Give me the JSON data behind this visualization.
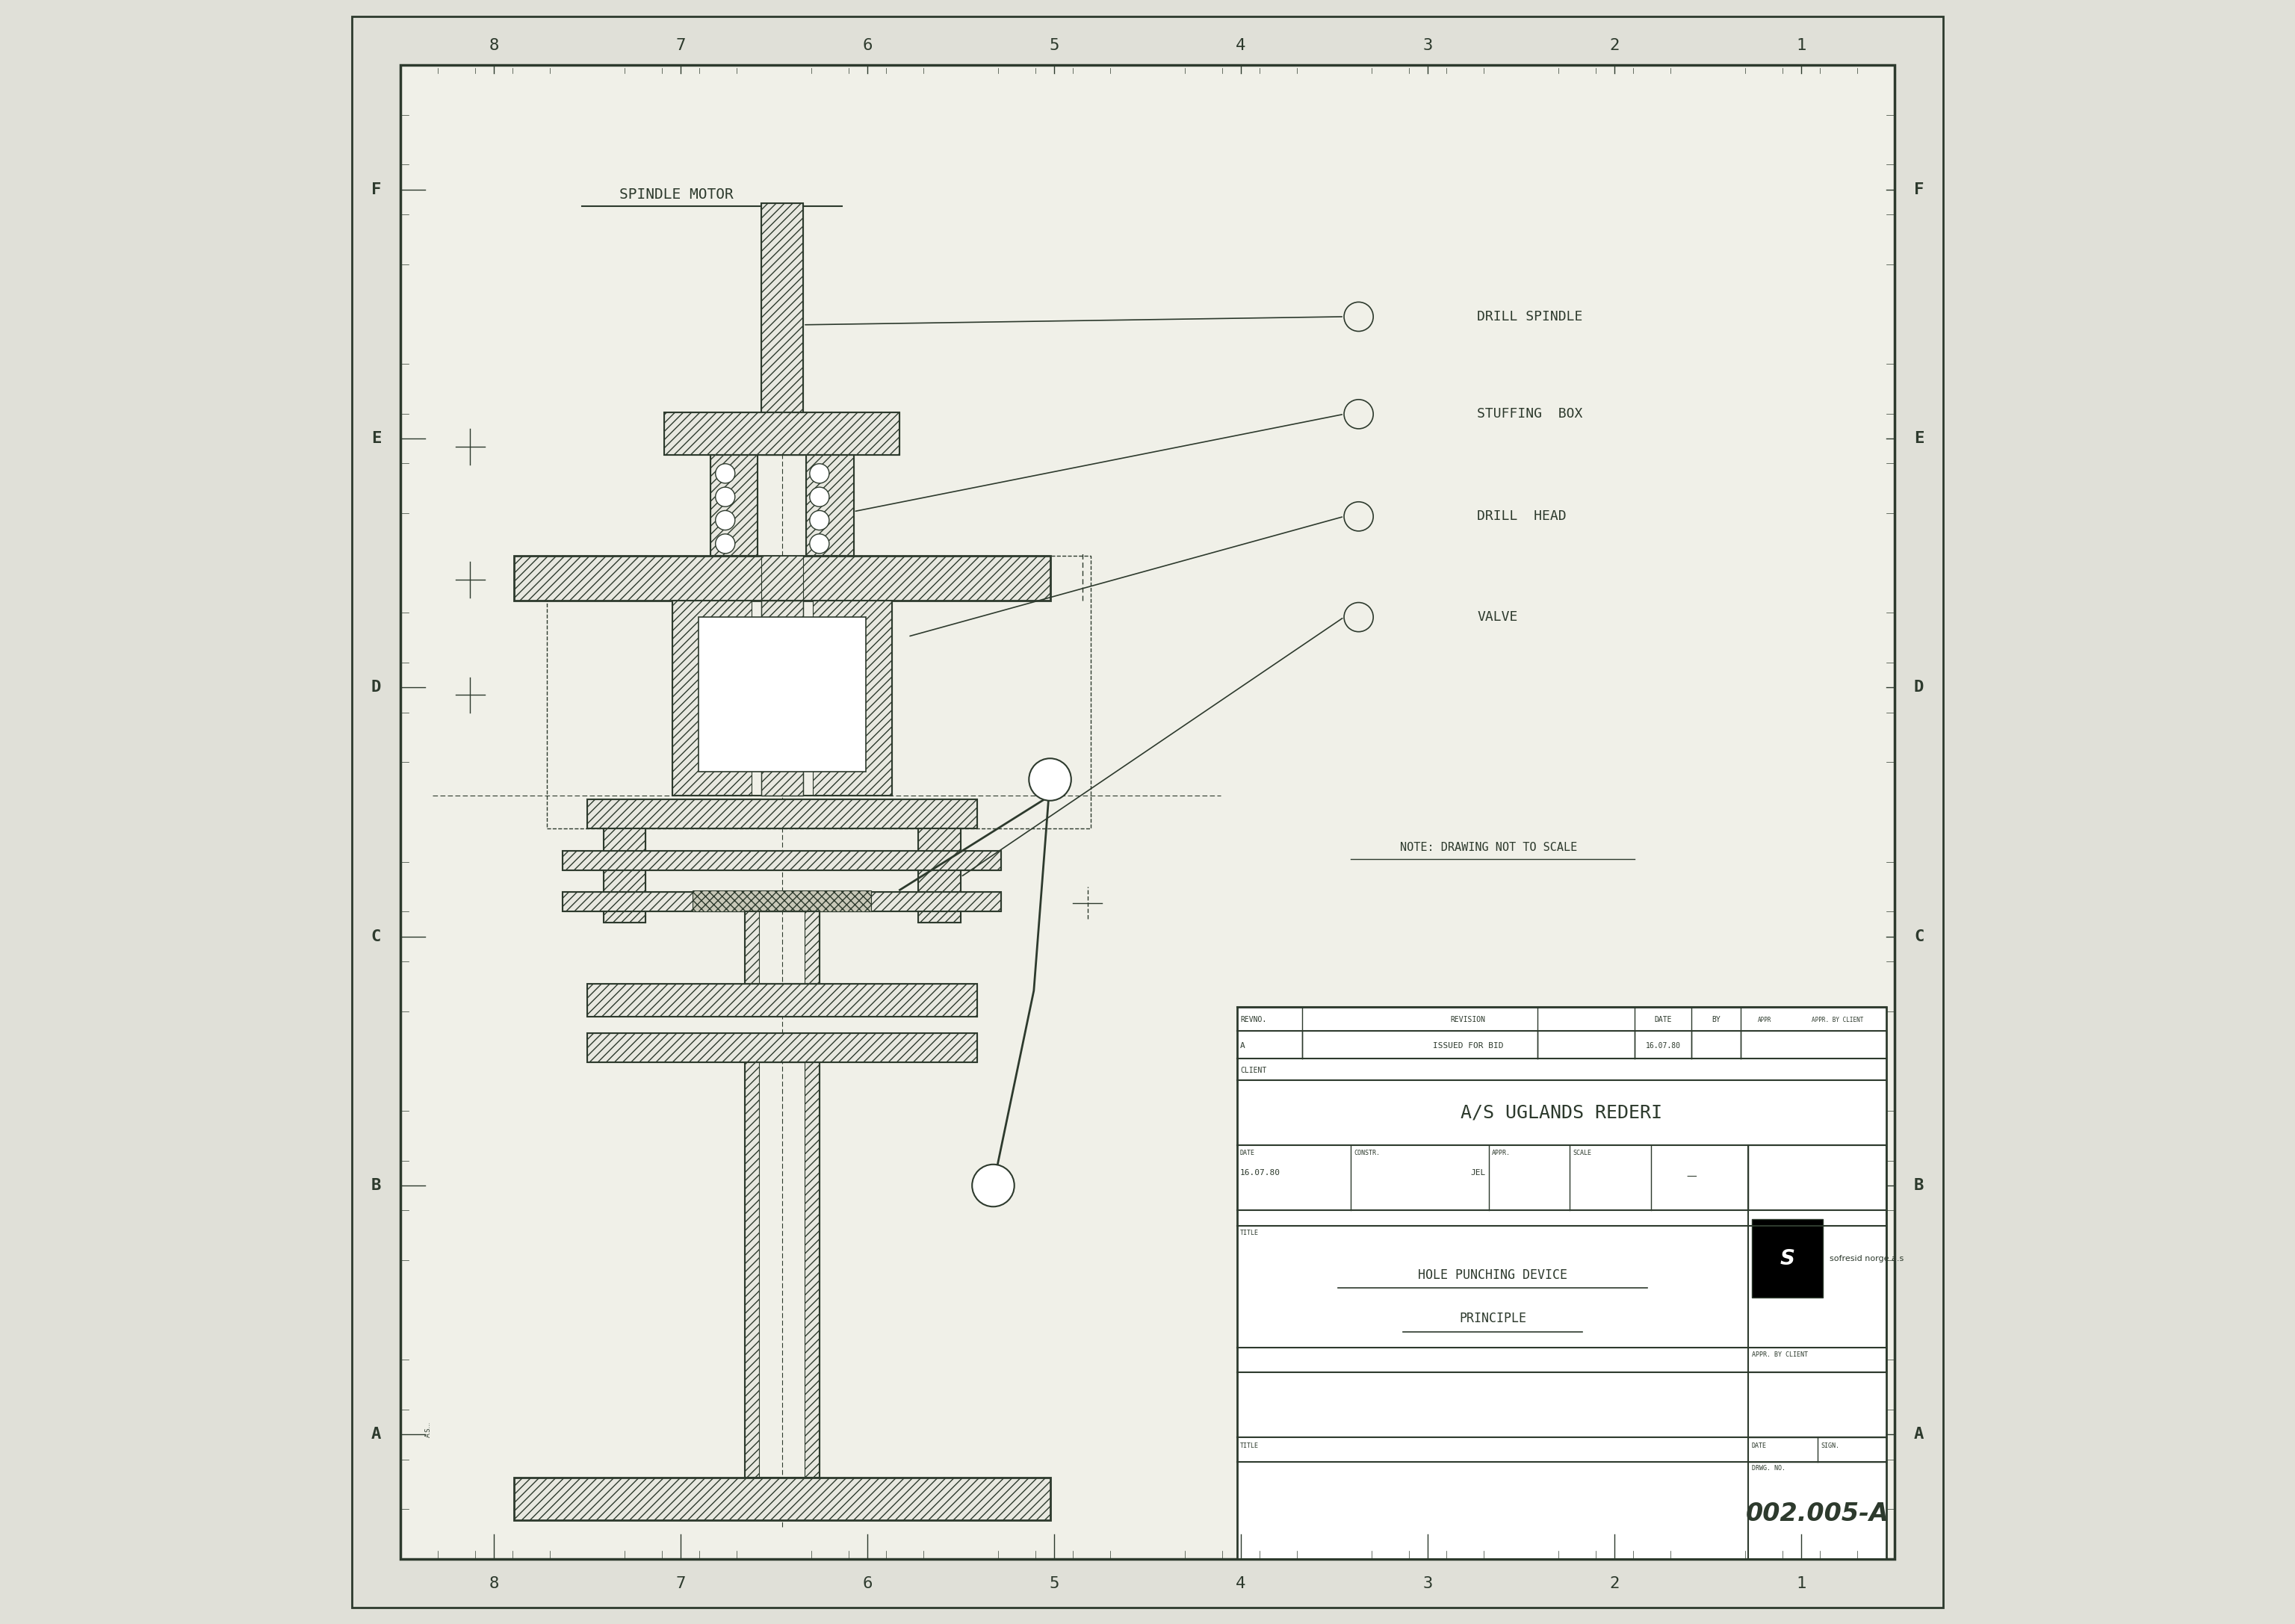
{
  "bg_color": "#e0e0d8",
  "line_color": "#2d3a2d",
  "paper_color": "#f0f0e8",
  "title_block": {
    "client": "A/S UGLANDS REDERI",
    "title1": "HOLE PUNCHING DEVICE",
    "title2": "PRINCIPLE",
    "date": "16.07.80",
    "constr": "JEL",
    "appr": "",
    "scale": "—",
    "drwg_no": "002.005-A",
    "company": "sofresid norge a.s",
    "rev_a": "A",
    "rev_desc": "ISSUED FOR BID",
    "rev_date": "16.07.80"
  },
  "border_labels_top": [
    "8",
    "7",
    "6",
    "5",
    "4",
    "3",
    "2",
    "1"
  ],
  "border_labels_left": [
    "F",
    "E",
    "D",
    "C",
    "B",
    "A"
  ],
  "spindle_label": "SPINDLE MOTOR",
  "labels": [
    {
      "text": "DRILL SPINDLE",
      "ox": 0.685,
      "oy": 0.805
    },
    {
      "text": "STUFFING  BOX",
      "ox": 0.685,
      "oy": 0.745
    },
    {
      "text": "DRILL  HEAD",
      "ox": 0.685,
      "oy": 0.682
    },
    {
      "text": "VALVE",
      "ox": 0.685,
      "oy": 0.62
    }
  ],
  "note_text": "NOTE: DRAWING NOT TO SCALE",
  "hatch_color": "#2d3a2d",
  "drawing_color": "#2d3a2d"
}
